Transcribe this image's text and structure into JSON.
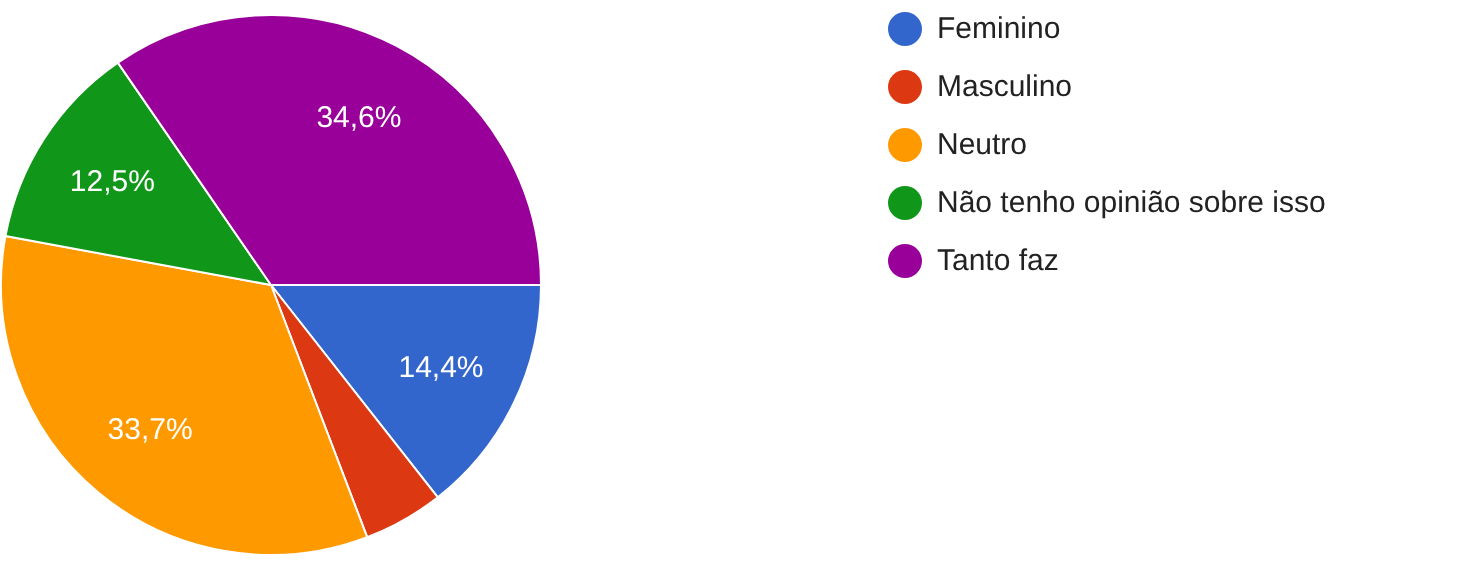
{
  "chart_data": {
    "type": "pie",
    "categories": [
      "Feminino",
      "Masculino",
      "Neutro",
      "Não tenho opinião sobre isso",
      "Tanto faz"
    ],
    "values": [
      14.4,
      4.8,
      33.7,
      12.5,
      34.6
    ],
    "colors": [
      "#3366cc",
      "#dc3912",
      "#ff9900",
      "#109618",
      "#990099"
    ],
    "value_labels": [
      "14,4%",
      null,
      "33,7%",
      "12,5%",
      "34,6%"
    ],
    "legend": "right"
  }
}
